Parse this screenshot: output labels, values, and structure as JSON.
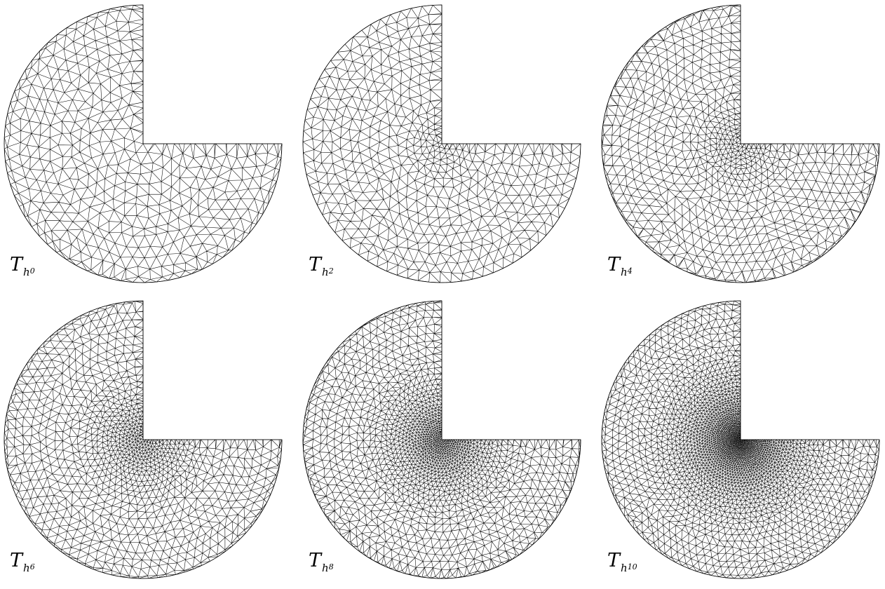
{
  "figure": {
    "panels": [
      {
        "id": "p0",
        "symbol": "T",
        "sub_h": "h",
        "sub_index": "0",
        "density": 0.0
      },
      {
        "id": "p2",
        "symbol": "T",
        "sub_h": "h",
        "sub_index": "2",
        "density": 0.25
      },
      {
        "id": "p4",
        "symbol": "T",
        "sub_h": "h",
        "sub_index": "4",
        "density": 0.45
      },
      {
        "id": "p6",
        "symbol": "T",
        "sub_h": "h",
        "sub_index": "6",
        "density": 0.65
      },
      {
        "id": "p8",
        "symbol": "T",
        "sub_h": "h",
        "sub_index": "8",
        "density": 0.82
      },
      {
        "id": "p10",
        "symbol": "T",
        "sub_h": "h",
        "sub_index": "10",
        "density": 1.0
      }
    ]
  },
  "style": {
    "line_color": "#000000",
    "background": "#ffffff"
  }
}
